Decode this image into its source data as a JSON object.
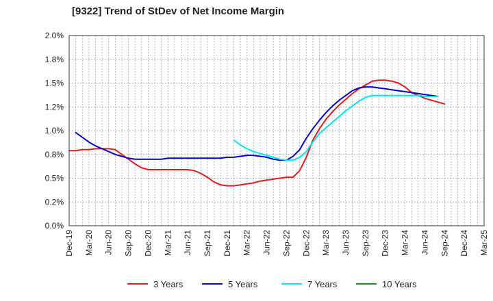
{
  "chart_data": {
    "type": "line",
    "title": "[9322]  Trend of StDev of Net Income Margin",
    "xlabel": "",
    "ylabel": "",
    "x_ticks": [
      "Dec-19",
      "Mar-20",
      "Jun-20",
      "Sep-20",
      "Dec-20",
      "Mar-21",
      "Jun-21",
      "Sep-21",
      "Dec-21",
      "Mar-22",
      "Jun-22",
      "Sep-22",
      "Dec-22",
      "Mar-23",
      "Jun-23",
      "Sep-23",
      "Dec-23",
      "Mar-24",
      "Jun-24",
      "Sep-24",
      "Dec-24",
      "Mar-25"
    ],
    "y_ticks": [
      "0.0%",
      "0.2%",
      "0.5%",
      "0.8%",
      "1.0%",
      "1.2%",
      "1.5%",
      "1.8%",
      "2.0%"
    ],
    "ylim": [
      0,
      2.0
    ],
    "grid": true,
    "legend_position": "bottom",
    "series": [
      {
        "name": "3 Years",
        "color": "#e41a1c",
        "start_index": 0,
        "values": [
          0.79,
          0.79,
          0.8,
          0.8,
          0.81,
          0.81,
          0.81,
          0.8,
          0.75,
          0.7,
          0.65,
          0.61,
          0.59,
          0.59,
          0.59,
          0.59,
          0.59,
          0.59,
          0.59,
          0.58,
          0.55,
          0.51,
          0.46,
          0.43,
          0.42,
          0.42,
          0.43,
          0.44,
          0.45,
          0.47,
          0.48,
          0.49,
          0.5,
          0.51,
          0.51,
          0.58,
          0.72,
          0.9,
          1.02,
          1.12,
          1.2,
          1.27,
          1.33,
          1.39,
          1.44,
          1.48,
          1.52,
          1.53,
          1.53,
          1.52,
          1.5,
          1.46,
          1.4,
          1.37,
          1.34,
          1.32,
          1.3,
          1.28
        ]
      },
      {
        "name": "5 Years",
        "color": "#0000cc",
        "start_index": 1,
        "values": [
          0.98,
          0.93,
          0.88,
          0.84,
          0.81,
          0.78,
          0.75,
          0.73,
          0.71,
          0.7,
          0.7,
          0.7,
          0.7,
          0.7,
          0.71,
          0.71,
          0.71,
          0.71,
          0.71,
          0.71,
          0.71,
          0.71,
          0.71,
          0.72,
          0.72,
          0.73,
          0.74,
          0.74,
          0.73,
          0.72,
          0.7,
          0.69,
          0.69,
          0.73,
          0.8,
          0.92,
          1.02,
          1.11,
          1.19,
          1.26,
          1.32,
          1.37,
          1.42,
          1.45,
          1.46,
          1.46,
          1.45,
          1.44,
          1.43,
          1.42,
          1.41,
          1.4,
          1.39,
          1.38,
          1.37,
          1.36
        ]
      },
      {
        "name": "7 Years",
        "color": "#00e5ee",
        "start_index": 25,
        "values": [
          0.9,
          0.85,
          0.81,
          0.78,
          0.76,
          0.74,
          0.72,
          0.7,
          0.69,
          0.69,
          0.72,
          0.78,
          0.88,
          0.97,
          1.03,
          1.09,
          1.15,
          1.21,
          1.26,
          1.31,
          1.35,
          1.37,
          1.37,
          1.37,
          1.37,
          1.37,
          1.37,
          1.37,
          1.37,
          1.36,
          1.36,
          1.36
        ]
      },
      {
        "name": "10 Years",
        "color": "#228b22",
        "start_index": 0,
        "values": []
      }
    ]
  }
}
